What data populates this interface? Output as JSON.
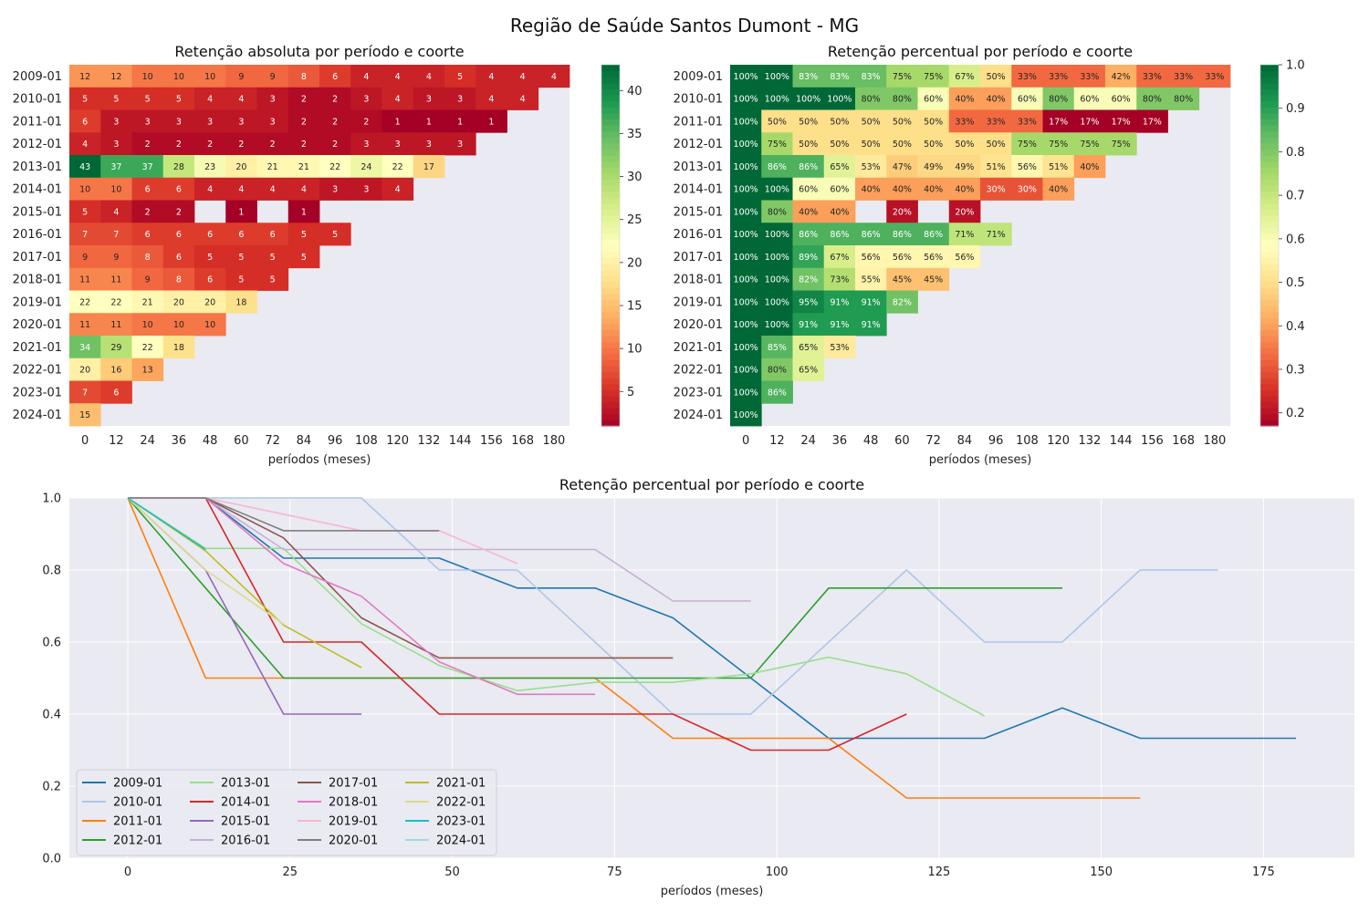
{
  "suptitle": "Região de Saúde Santos Dumont - MG",
  "colors": {
    "background": "#eaeaf2",
    "grid": "#ffffff",
    "cmap": [
      "#a50026",
      "#d73027",
      "#f46d43",
      "#fdae61",
      "#fee08b",
      "#ffffbf",
      "#d9ef8b",
      "#a6d96a",
      "#66bd63",
      "#1a9850",
      "#006837"
    ]
  },
  "chart_data": [
    {
      "type": "heatmap",
      "title": "Retenção absoluta por período e coorte",
      "xlabel": "períodos (meses)",
      "ylabel": "",
      "x": [
        "0",
        "12",
        "24",
        "36",
        "48",
        "60",
        "72",
        "84",
        "96",
        "108",
        "120",
        "132",
        "144",
        "156",
        "168",
        "180"
      ],
      "y": [
        "2009-01",
        "2010-01",
        "2011-01",
        "2012-01",
        "2013-01",
        "2014-01",
        "2015-01",
        "2016-01",
        "2017-01",
        "2018-01",
        "2019-01",
        "2020-01",
        "2021-01",
        "2022-01",
        "2023-01",
        "2024-01"
      ],
      "values": [
        [
          12,
          12,
          10,
          10,
          10,
          9,
          9,
          8,
          6,
          4,
          4,
          4,
          5,
          4,
          4,
          4
        ],
        [
          5,
          5,
          5,
          5,
          4,
          4,
          3,
          2,
          2,
          3,
          4,
          3,
          3,
          4,
          4,
          null
        ],
        [
          6,
          3,
          3,
          3,
          3,
          3,
          3,
          2,
          2,
          2,
          1,
          1,
          1,
          1,
          null,
          null
        ],
        [
          4,
          3,
          2,
          2,
          2,
          2,
          2,
          2,
          2,
          3,
          3,
          3,
          3,
          null,
          null,
          null
        ],
        [
          43,
          37,
          37,
          28,
          23,
          20,
          21,
          21,
          22,
          24,
          22,
          17,
          null,
          null,
          null,
          null
        ],
        [
          10,
          10,
          6,
          6,
          4,
          4,
          4,
          4,
          3,
          3,
          4,
          null,
          null,
          null,
          null,
          null
        ],
        [
          5,
          4,
          2,
          2,
          null,
          1,
          null,
          1,
          null,
          null,
          null,
          null,
          null,
          null,
          null,
          null
        ],
        [
          7,
          7,
          6,
          6,
          6,
          6,
          6,
          5,
          5,
          null,
          null,
          null,
          null,
          null,
          null,
          null
        ],
        [
          9,
          9,
          8,
          6,
          5,
          5,
          5,
          5,
          null,
          null,
          null,
          null,
          null,
          null,
          null,
          null
        ],
        [
          11,
          11,
          9,
          8,
          6,
          5,
          5,
          null,
          null,
          null,
          null,
          null,
          null,
          null,
          null,
          null
        ],
        [
          22,
          22,
          21,
          20,
          20,
          18,
          null,
          null,
          null,
          null,
          null,
          null,
          null,
          null,
          null,
          null
        ],
        [
          11,
          11,
          10,
          10,
          10,
          null,
          null,
          null,
          null,
          null,
          null,
          null,
          null,
          null,
          null,
          null
        ],
        [
          34,
          29,
          22,
          18,
          null,
          null,
          null,
          null,
          null,
          null,
          null,
          null,
          null,
          null,
          null,
          null
        ],
        [
          20,
          16,
          13,
          null,
          null,
          null,
          null,
          null,
          null,
          null,
          null,
          null,
          null,
          null,
          null,
          null
        ],
        [
          7,
          6,
          null,
          null,
          null,
          null,
          null,
          null,
          null,
          null,
          null,
          null,
          null,
          null,
          null,
          null
        ],
        [
          15,
          null,
          null,
          null,
          null,
          null,
          null,
          null,
          null,
          null,
          null,
          null,
          null,
          null,
          null,
          null
        ]
      ],
      "colorbar": {
        "min": 1,
        "max": 43,
        "ticks": [
          5,
          10,
          15,
          20,
          25,
          30,
          35,
          40
        ]
      }
    },
    {
      "type": "heatmap",
      "title": "Retenção percentual por período e coorte",
      "xlabel": "períodos (meses)",
      "ylabel": "",
      "x": [
        "0",
        "12",
        "24",
        "36",
        "48",
        "60",
        "72",
        "84",
        "96",
        "108",
        "120",
        "132",
        "144",
        "156",
        "168",
        "180"
      ],
      "y": [
        "2009-01",
        "2010-01",
        "2011-01",
        "2012-01",
        "2013-01",
        "2014-01",
        "2015-01",
        "2016-01",
        "2017-01",
        "2018-01",
        "2019-01",
        "2020-01",
        "2021-01",
        "2022-01",
        "2023-01",
        "2024-01"
      ],
      "values": [
        [
          100,
          100,
          83,
          83,
          83,
          75,
          75,
          67,
          50,
          33,
          33,
          33,
          42,
          33,
          33,
          33
        ],
        [
          100,
          100,
          100,
          100,
          80,
          80,
          60,
          40,
          40,
          60,
          80,
          60,
          60,
          80,
          80,
          null
        ],
        [
          100,
          50,
          50,
          50,
          50,
          50,
          50,
          33,
          33,
          33,
          17,
          17,
          17,
          17,
          null,
          null
        ],
        [
          100,
          75,
          50,
          50,
          50,
          50,
          50,
          50,
          50,
          75,
          75,
          75,
          75,
          null,
          null,
          null
        ],
        [
          100,
          86,
          86,
          65,
          53,
          47,
          49,
          49,
          51,
          56,
          51,
          40,
          null,
          null,
          null,
          null
        ],
        [
          100,
          100,
          60,
          60,
          40,
          40,
          40,
          40,
          30,
          30,
          40,
          null,
          null,
          null,
          null,
          null
        ],
        [
          100,
          80,
          40,
          40,
          null,
          20,
          null,
          20,
          null,
          null,
          null,
          null,
          null,
          null,
          null,
          null
        ],
        [
          100,
          100,
          86,
          86,
          86,
          86,
          86,
          71,
          71,
          null,
          null,
          null,
          null,
          null,
          null,
          null
        ],
        [
          100,
          100,
          89,
          67,
          56,
          56,
          56,
          56,
          null,
          null,
          null,
          null,
          null,
          null,
          null,
          null
        ],
        [
          100,
          100,
          82,
          73,
          55,
          45,
          45,
          null,
          null,
          null,
          null,
          null,
          null,
          null,
          null,
          null
        ],
        [
          100,
          100,
          95,
          91,
          91,
          82,
          null,
          null,
          null,
          null,
          null,
          null,
          null,
          null,
          null,
          null
        ],
        [
          100,
          100,
          91,
          91,
          91,
          null,
          null,
          null,
          null,
          null,
          null,
          null,
          null,
          null,
          null,
          null
        ],
        [
          100,
          85,
          65,
          53,
          null,
          null,
          null,
          null,
          null,
          null,
          null,
          null,
          null,
          null,
          null,
          null
        ],
        [
          100,
          80,
          65,
          null,
          null,
          null,
          null,
          null,
          null,
          null,
          null,
          null,
          null,
          null,
          null,
          null
        ],
        [
          100,
          86,
          null,
          null,
          null,
          null,
          null,
          null,
          null,
          null,
          null,
          null,
          null,
          null,
          null,
          null
        ],
        [
          100,
          null,
          null,
          null,
          null,
          null,
          null,
          null,
          null,
          null,
          null,
          null,
          null,
          null,
          null,
          null
        ]
      ],
      "value_suffix": "%",
      "colorbar": {
        "min": 0.17,
        "max": 1.0,
        "ticks": [
          "0.2",
          "0.3",
          "0.4",
          "0.5",
          "0.6",
          "0.7",
          "0.8",
          "0.9",
          "1.0"
        ]
      }
    },
    {
      "type": "line",
      "title": "Retenção percentual por período e coorte",
      "xlabel": "períodos (meses)",
      "ylabel": "",
      "xlim": [
        -9,
        189
      ],
      "ylim": [
        0,
        1
      ],
      "xticks": [
        0,
        25,
        50,
        75,
        100,
        125,
        150,
        175
      ],
      "yticks": [
        "0.0",
        "0.2",
        "0.4",
        "0.6",
        "0.8",
        "1.0"
      ],
      "grid": true,
      "legend": "lower-left",
      "series": [
        {
          "name": "2009-01",
          "color": "#1f77b4",
          "x": [
            0,
            12,
            24,
            36,
            48,
            60,
            72,
            84,
            96,
            108,
            120,
            132,
            144,
            156,
            168,
            180
          ],
          "y": [
            1,
            1,
            0.833,
            0.833,
            0.833,
            0.75,
            0.75,
            0.667,
            0.5,
            0.333,
            0.333,
            0.333,
            0.417,
            0.333,
            0.333,
            0.333
          ]
        },
        {
          "name": "2010-01",
          "color": "#aec7e8",
          "x": [
            0,
            12,
            24,
            36,
            48,
            60,
            72,
            84,
            96,
            108,
            120,
            132,
            144,
            156,
            168
          ],
          "y": [
            1,
            1,
            1,
            1,
            0.8,
            0.8,
            0.6,
            0.4,
            0.4,
            0.6,
            0.8,
            0.6,
            0.6,
            0.8,
            0.8
          ]
        },
        {
          "name": "2011-01",
          "color": "#ff7f0e",
          "x": [
            0,
            12,
            24,
            36,
            48,
            60,
            72,
            84,
            96,
            108,
            120,
            132,
            144,
            156
          ],
          "y": [
            1,
            0.5,
            0.5,
            0.5,
            0.5,
            0.5,
            0.5,
            0.333,
            0.333,
            0.333,
            0.167,
            0.167,
            0.167,
            0.167
          ]
        },
        {
          "name": "2012-01",
          "color": "#2ca02c",
          "x": [
            0,
            12,
            24,
            36,
            48,
            60,
            72,
            84,
            96,
            108,
            120,
            132,
            144
          ],
          "y": [
            1,
            0.75,
            0.5,
            0.5,
            0.5,
            0.5,
            0.5,
            0.5,
            0.5,
            0.75,
            0.75,
            0.75,
            0.75
          ]
        },
        {
          "name": "2013-01",
          "color": "#98df8a",
          "x": [
            0,
            12,
            24,
            36,
            48,
            60,
            72,
            84,
            96,
            108,
            120,
            132
          ],
          "y": [
            1,
            0.86,
            0.86,
            0.651,
            0.535,
            0.465,
            0.488,
            0.488,
            0.512,
            0.558,
            0.512,
            0.395
          ]
        },
        {
          "name": "2014-01",
          "color": "#d62728",
          "x": [
            0,
            12,
            24,
            36,
            48,
            60,
            72,
            84,
            96,
            108,
            120
          ],
          "y": [
            1,
            1,
            0.6,
            0.6,
            0.4,
            0.4,
            0.4,
            0.4,
            0.3,
            0.3,
            0.4
          ]
        },
        {
          "name": "2015-01",
          "color": "#9467bd",
          "x": [
            0,
            12,
            24,
            36
          ],
          "y": [
            1,
            0.8,
            0.4,
            0.4
          ]
        },
        {
          "name": "2016-01",
          "color": "#c5b0d5",
          "x": [
            0,
            12,
            24,
            36,
            48,
            60,
            72,
            84,
            96
          ],
          "y": [
            1,
            1,
            0.857,
            0.857,
            0.857,
            0.857,
            0.857,
            0.714,
            0.714
          ]
        },
        {
          "name": "2017-01",
          "color": "#8c564b",
          "x": [
            0,
            12,
            24,
            36,
            48,
            60,
            72,
            84
          ],
          "y": [
            1,
            1,
            0.889,
            0.667,
            0.556,
            0.556,
            0.556,
            0.556
          ]
        },
        {
          "name": "2018-01",
          "color": "#e377c2",
          "x": [
            0,
            12,
            24,
            36,
            48,
            60,
            72
          ],
          "y": [
            1,
            1,
            0.818,
            0.727,
            0.545,
            0.455,
            0.455
          ]
        },
        {
          "name": "2019-01",
          "color": "#f7b6d2",
          "x": [
            0,
            12,
            24,
            36,
            48,
            60
          ],
          "y": [
            1,
            1,
            0.955,
            0.909,
            0.909,
            0.818
          ]
        },
        {
          "name": "2020-01",
          "color": "#7f7f7f",
          "x": [
            0,
            12,
            24,
            36,
            48
          ],
          "y": [
            1,
            1,
            0.909,
            0.909,
            0.909
          ]
        },
        {
          "name": "2021-01",
          "color": "#bcbd22",
          "x": [
            0,
            12,
            24,
            36
          ],
          "y": [
            1,
            0.853,
            0.647,
            0.529
          ]
        },
        {
          "name": "2022-01",
          "color": "#dbdb8d",
          "x": [
            0,
            12,
            24
          ],
          "y": [
            1,
            0.8,
            0.65
          ]
        },
        {
          "name": "2023-01",
          "color": "#17becf",
          "x": [
            0,
            12
          ],
          "y": [
            1,
            0.857
          ]
        },
        {
          "name": "2024-01",
          "color": "#9edae5",
          "x": [
            0
          ],
          "y": [
            1
          ]
        }
      ]
    }
  ]
}
